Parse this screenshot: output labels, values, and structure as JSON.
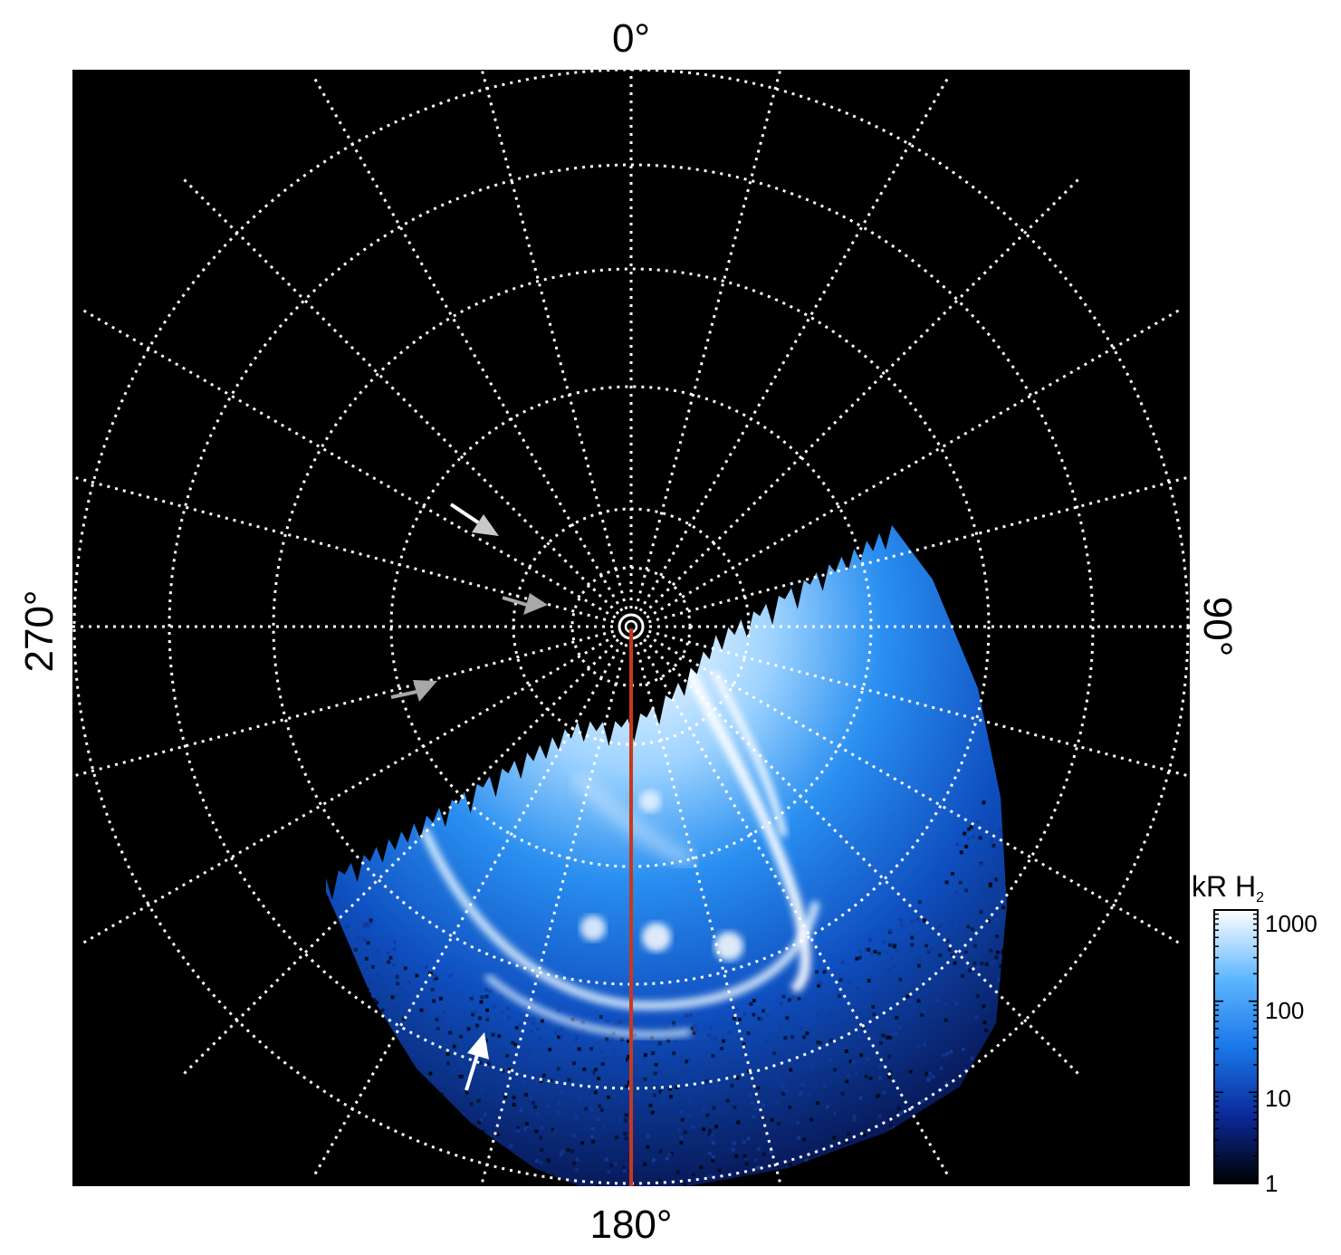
{
  "labels": {
    "top": "0°",
    "bottom": "180°",
    "left": "270°",
    "right": "90°"
  },
  "colorbar": {
    "title_main": "kR H",
    "title_sub": "2",
    "ticks": [
      "1000",
      "100",
      "10",
      "1"
    ]
  },
  "colors": {
    "background": "#000000",
    "grid": "#ffffff",
    "meridian_line": "#c8381c",
    "aurora_low": "#0a1a6e",
    "aurora_mid": "#1f8af0",
    "aurora_high": "#ffffff",
    "arrow_white": "#ffffff",
    "arrow_grey": "#a8a8a8"
  },
  "annotations": {
    "arrows": [
      {
        "name": "arrow-upper-grey",
        "color": "#c8c8c8"
      },
      {
        "name": "arrow-middle-grey",
        "color": "#a8a8a8"
      },
      {
        "name": "arrow-lower-grey",
        "color": "#a8a8a8"
      },
      {
        "name": "arrow-bottom-white",
        "color": "#ffffff"
      }
    ]
  }
}
